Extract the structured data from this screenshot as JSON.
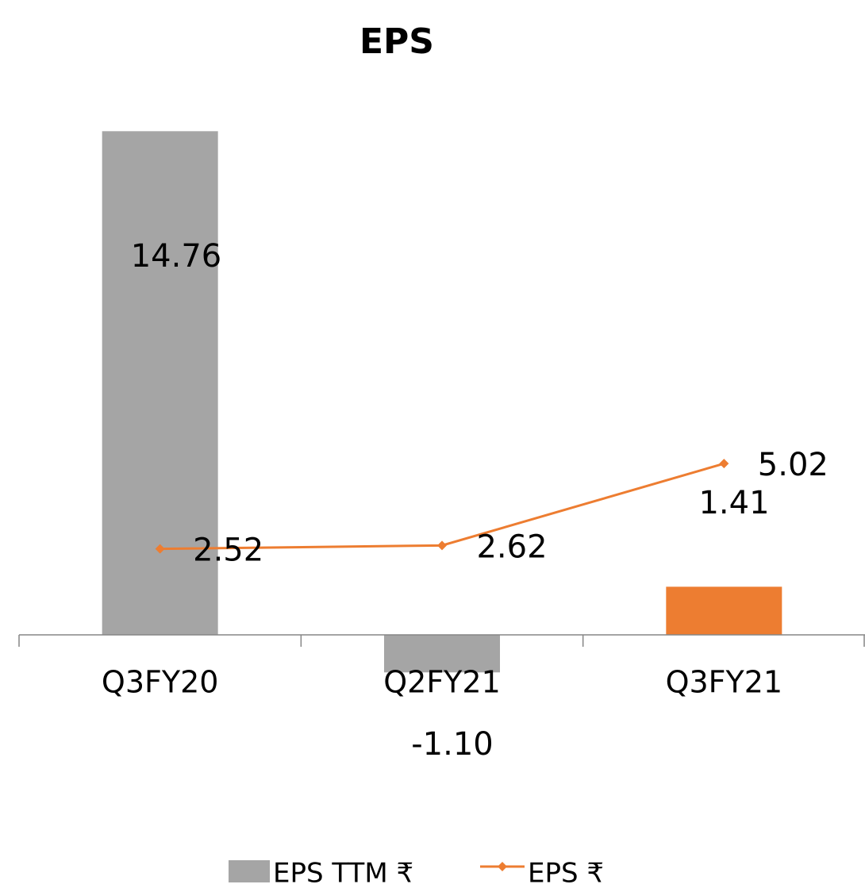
{
  "chart_data": {
    "type": "bar-line",
    "title": "EPS",
    "categories": [
      "Q3FY20",
      "Q2FY21",
      "Q3FY21"
    ],
    "ylim": [
      -2,
      16
    ],
    "series": [
      {
        "name": "EPS  TTM  ₹",
        "type": "bar",
        "color": "#a5a5a5",
        "colors": [
          "#a5a5a5",
          "#a5a5a5",
          "#ed7d31"
        ],
        "values": [
          14.76,
          -1.1,
          1.41
        ],
        "value_labels": [
          "14.76",
          "-1.10",
          "1.41"
        ]
      },
      {
        "name": "EPS  ₹",
        "type": "line",
        "color": "#ed7d31",
        "values": [
          2.52,
          2.62,
          5.02
        ]
      }
    ],
    "legend": "bottom"
  }
}
